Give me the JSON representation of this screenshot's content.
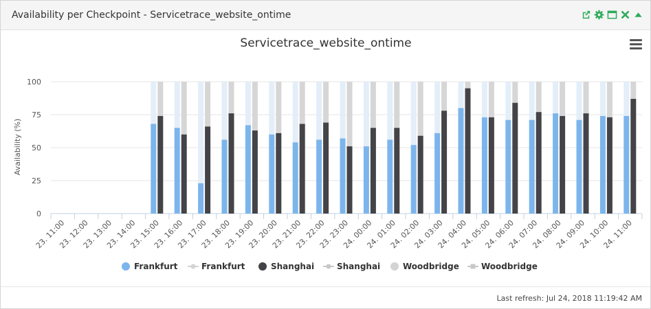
{
  "panel": {
    "title": "Availability per Checkpoint - Servicetrace_website_ontime",
    "icons": [
      "external-link-icon",
      "gear-icon",
      "maximize-icon",
      "close-icon",
      "collapse-icon"
    ]
  },
  "footer": {
    "last_refresh": "Last refresh: Jul 24, 2018 11:19:42 AM"
  },
  "colors": {
    "frankfurt": "#7cb5ec",
    "shanghai": "#434348",
    "woodbridge": "#d3d3d3",
    "frankfurt_bg": "#e3eef9",
    "shanghai_bg": "#d6d6d6",
    "accent": "#2eab5b"
  },
  "chart_data": {
    "type": "bar",
    "title": "Servicetrace_website_ontime",
    "ylabel": "Availability (%)",
    "ylim": [
      0,
      100
    ],
    "yticks": [
      "0",
      "25",
      "50",
      "75",
      "100"
    ],
    "categories": [
      "23. 11:00",
      "23. 12:00",
      "23. 13:00",
      "23. 14:00",
      "23. 15:00",
      "23. 16:00",
      "23. 17:00",
      "23. 18:00",
      "23. 19:00",
      "23. 20:00",
      "23. 21:00",
      "23. 22:00",
      "23. 23:00",
      "24. 00:00",
      "24. 01:00",
      "24. 02:00",
      "24. 03:00",
      "24. 04:00",
      "24. 05:00",
      "24. 06:00",
      "24. 07:00",
      "24. 08:00",
      "24. 09:00",
      "24. 10:00",
      "24. 11:00"
    ],
    "series": [
      {
        "name": "Frankfurt",
        "values": [
          null,
          null,
          null,
          null,
          68,
          65,
          23,
          56,
          67,
          60,
          54,
          56,
          57,
          51,
          56,
          52,
          61,
          80,
          73,
          71,
          71,
          76,
          71,
          74,
          74
        ]
      },
      {
        "name": "Shanghai",
        "values": [
          null,
          null,
          null,
          null,
          74,
          60,
          66,
          76,
          63,
          61,
          68,
          69,
          51,
          65,
          65,
          59,
          78,
          95,
          73,
          84,
          77,
          74,
          76,
          73,
          87
        ]
      }
    ],
    "legend": [
      "Frankfurt",
      "Frankfurt",
      "Shanghai",
      "Shanghai",
      "Woodbridge",
      "Woodbridge"
    ],
    "legend_position": "bottom-center",
    "grid": true
  }
}
